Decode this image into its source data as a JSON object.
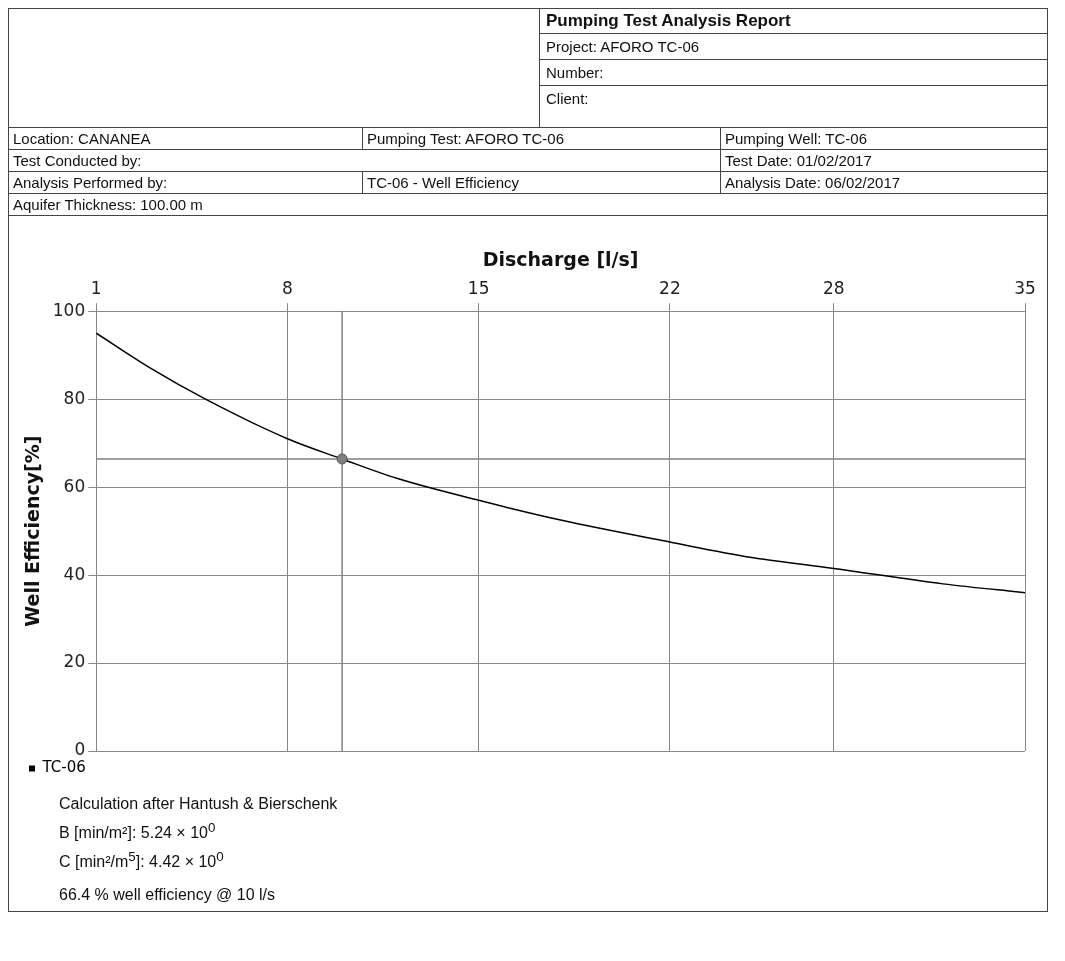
{
  "chart_data": {
    "type": "line",
    "xlabel": "Discharge [l/s]",
    "ylabel": "Well Efficiency[%]",
    "xlim": [
      1,
      35
    ],
    "xticks": [
      1,
      8,
      15,
      22,
      28,
      35
    ],
    "ylim": [
      0,
      100
    ],
    "yticks": [
      0,
      20,
      40,
      60,
      80,
      100
    ],
    "grid": true,
    "legend": "bottom left",
    "marker": "none",
    "line_style": "solid",
    "series": [
      {
        "name": "TC-06",
        "color": "#000000",
        "x": [
          1,
          3,
          5,
          8,
          10,
          12,
          15,
          18,
          22,
          25,
          28,
          32,
          35
        ],
        "values": [
          95,
          87,
          80,
          71,
          66.4,
          62,
          57,
          52.5,
          47.5,
          44,
          41.5,
          38,
          36
        ]
      },
      {
        "type": "scatter",
        "marker": "circle",
        "color": "#808080",
        "x": [
          10
        ],
        "values": [
          66.4
        ]
      }
    ],
    "ref_lines": [
      {
        "axis": "x",
        "value": 10,
        "color": "#808080"
      },
      {
        "axis": "y",
        "value": 66.4,
        "color": "#808080"
      }
    ],
    "annotations": [
      "Pumping Test Analysis Report",
      "Project:  AFORO TC-06",
      "Number:",
      "Client:",
      "Location: CANANEA",
      "Pumping Test: AFORO TC-06",
      "Pumping Well: TC-06",
      "Test Conducted by:",
      "Test Date: 01/02/2017",
      "Analysis Performed by:",
      "TC-06 - Well Efficiency",
      "Analysis Date: 06/02/2017",
      "Aquifer Thickness: 100.00 m",
      "Calculation after Hantush & Bierschenk",
      "B [min/m²]:  5.24 × 10$^{0}$",
      "C [min²/m$^{5}$]:  4.42 × 10$^{0}$",
      "66.4 % well efficiency @ 10 l/s"
    ]
  }
}
